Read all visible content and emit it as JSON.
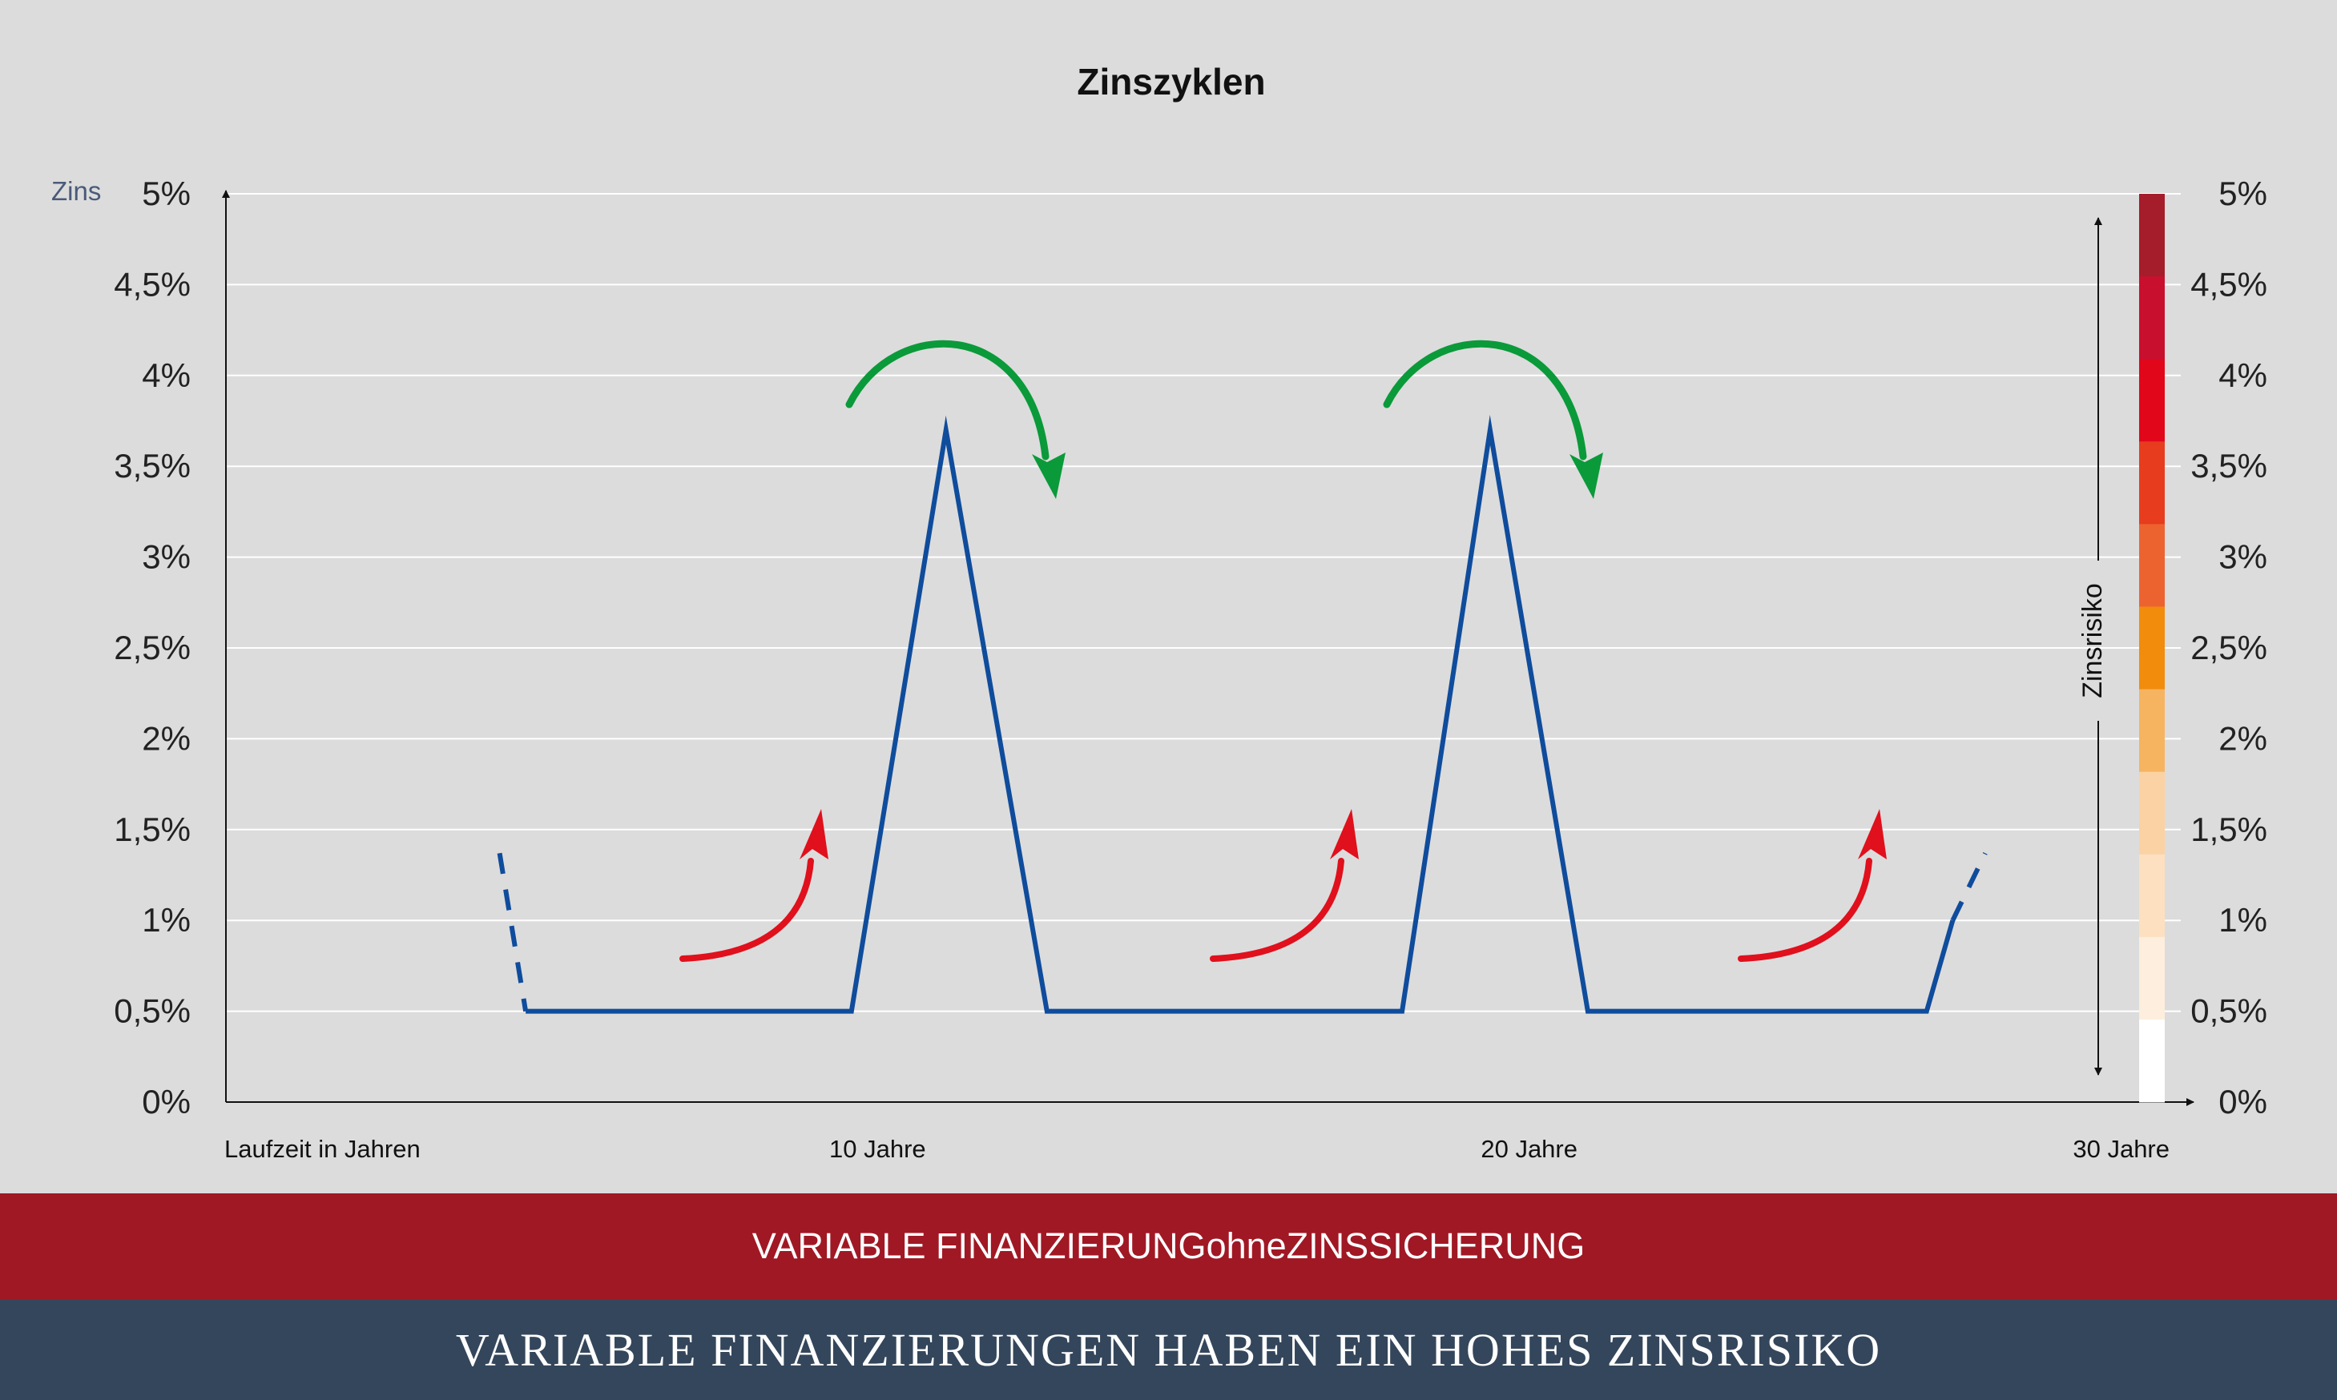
{
  "chart_data": {
    "type": "line",
    "title": "Zinszyklen",
    "ylabel": "Zins",
    "xlabel": "Laufzeit in Jahren",
    "ylim": [
      0,
      5
    ],
    "xlim": [
      0,
      30
    ],
    "grid": true,
    "y_ticks": [
      {
        "value": 0,
        "label": "0%"
      },
      {
        "value": 0.5,
        "label": "0,5%"
      },
      {
        "value": 1,
        "label": "1%"
      },
      {
        "value": 1.5,
        "label": "1,5%"
      },
      {
        "value": 2,
        "label": "2%"
      },
      {
        "value": 2.5,
        "label": "2,5%"
      },
      {
        "value": 3,
        "label": "3%"
      },
      {
        "value": 3.5,
        "label": "3,5%"
      },
      {
        "value": 4,
        "label": "4%"
      },
      {
        "value": 4.5,
        "label": "4,5%"
      },
      {
        "value": 5,
        "label": "5%"
      }
    ],
    "x_ticks": [
      {
        "value": 10,
        "label": "10 Jahre"
      },
      {
        "value": 20,
        "label": "20 Jahre"
      },
      {
        "value": 30,
        "label": "30 Jahre"
      }
    ],
    "series": [
      {
        "color": "#0f4c9c",
        "values": [
          {
            "x": 4.6,
            "y": 0.5
          },
          {
            "x": 9.6,
            "y": 0.5
          },
          {
            "x": 11.05,
            "y": 3.7
          },
          {
            "x": 12.6,
            "y": 0.5
          },
          {
            "x": 18.05,
            "y": 0.5
          },
          {
            "x": 19.4,
            "y": 3.7
          },
          {
            "x": 20.9,
            "y": 0.5
          },
          {
            "x": 26.1,
            "y": 0.5
          },
          {
            "x": 26.5,
            "y": 1.0
          }
        ],
        "dashed_start": [
          {
            "x": 4.2,
            "y": 1.37
          },
          {
            "x": 4.6,
            "y": 0.5
          }
        ],
        "dashed_end": [
          {
            "x": 26.5,
            "y": 1.0
          },
          {
            "x": 27.0,
            "y": 1.37
          }
        ]
      }
    ],
    "arrows_rising": {
      "color": "#e0101c",
      "count": 3,
      "meaning": "Zinsanstieg"
    },
    "arrows_falling": {
      "color": "#0a9a3a",
      "count": 2,
      "meaning": "Zinsrückgang"
    },
    "risk_scale": {
      "label": "Zinsrisiko",
      "colors": [
        "#ffffff",
        "#fdeedd",
        "#fde0c0",
        "#fbd2a4",
        "#f6b461",
        "#f28c0c",
        "#ed6330",
        "#e73c1e",
        "#e2061b",
        "#c8102e",
        "#a51c2a"
      ]
    }
  },
  "footer": {
    "band1_part1": "VARIABLE FINANZIERUNG ",
    "band1_part2": "ohne",
    "band1_part3": " ZINSSICHERUNG",
    "band2": "VARIABLE FINANZIERUNGEN HABEN EIN HOHES ZINSRISIKO"
  }
}
